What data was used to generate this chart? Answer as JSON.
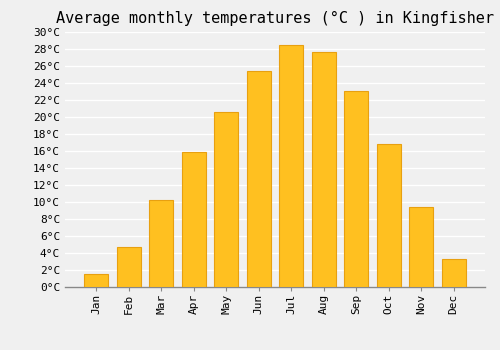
{
  "title": "Average monthly temperatures (°C ) in Kingfisher",
  "months": [
    "Jan",
    "Feb",
    "Mar",
    "Apr",
    "May",
    "Jun",
    "Jul",
    "Aug",
    "Sep",
    "Oct",
    "Nov",
    "Dec"
  ],
  "values": [
    1.5,
    4.7,
    10.2,
    15.8,
    20.6,
    25.4,
    28.4,
    27.6,
    23.0,
    16.8,
    9.4,
    3.3
  ],
  "bar_color": "#FFC020",
  "bar_edge_color": "#E8A010",
  "ylim": [
    0,
    30
  ],
  "ytick_step": 2,
  "background_color": "#f0f0f0",
  "grid_color": "#ffffff",
  "title_fontsize": 11,
  "tick_fontsize": 8,
  "font_family": "monospace"
}
